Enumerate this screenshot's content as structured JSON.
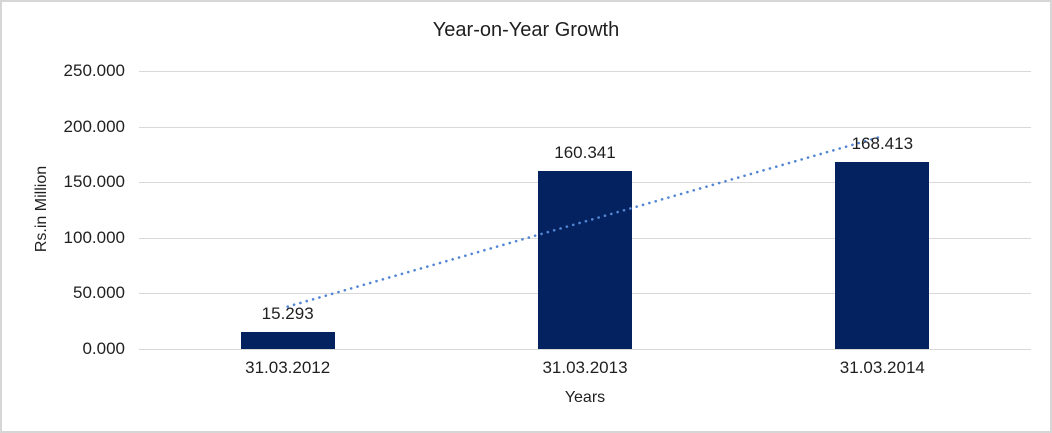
{
  "window": {
    "background": "#FFFFFF",
    "border_color": "#D6D6D6"
  },
  "chart_data": {
    "type": "bar",
    "title": "Year-on-Year Growth",
    "xlabel": "Years",
    "ylabel": "Rs.in Million",
    "categories": [
      "31.03.2012",
      "31.03.2013",
      "31.03.2014"
    ],
    "values": [
      15.293,
      160.341,
      168.413
    ],
    "data_labels": [
      "15.293",
      "160.341",
      "168.413"
    ],
    "ylim": [
      0,
      250
    ],
    "ytick_step": 50,
    "ytick_labels": [
      "0.000",
      "50.000",
      "100.000",
      "150.000",
      "200.000",
      "250.000"
    ],
    "grid": true,
    "legend": "none",
    "bar_color": "#04225F",
    "gridline_color": "#D9D9D9",
    "text_color": "#1F1F1F",
    "trendline": {
      "type": "linear",
      "style": "dotted",
      "color": "#5286D4"
    }
  }
}
